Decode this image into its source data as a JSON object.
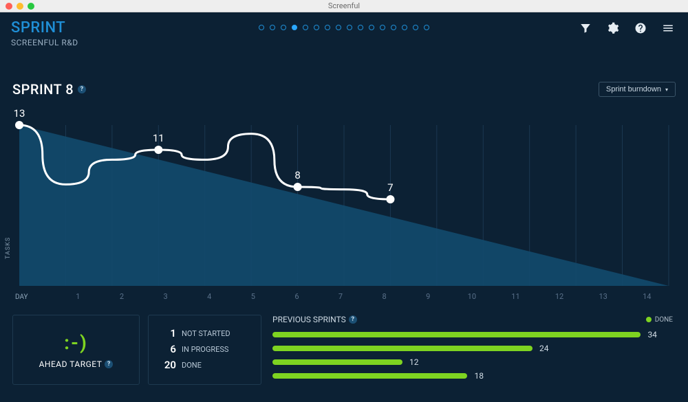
{
  "window": {
    "title": "Screenful"
  },
  "brand": {
    "title": "SPRINT",
    "subtitle": "SCREENFUL R&D",
    "title_color": "#1f8fd6"
  },
  "pager": {
    "total": 16,
    "active_index": 3
  },
  "dropdown": {
    "label": "Sprint burndown"
  },
  "sprint": {
    "title": "SPRINT 8",
    "chart_type": "line+area",
    "x_label": "DAY",
    "y_label": "TASKS",
    "x_ticks": [
      "1",
      "2",
      "3",
      "4",
      "5",
      "6",
      "7",
      "8",
      "9",
      "10",
      "11",
      "12",
      "13",
      "14"
    ],
    "x_range": [
      0,
      14
    ],
    "y_range": [
      0,
      13
    ],
    "ideal_area_color": "#124a6d",
    "line_color": "#ffffff",
    "line_width": 3,
    "marker_color": "#ffffff",
    "marker_radius": 6,
    "gridline_color": "#1b3852",
    "background_color": "#0c2134",
    "ideal_points": [
      [
        0,
        13
      ],
      [
        14,
        0
      ]
    ],
    "actual_points": [
      [
        0,
        13
      ],
      [
        1,
        8.2
      ],
      [
        2,
        10.2
      ],
      [
        3,
        11
      ],
      [
        4,
        10.2
      ],
      [
        5,
        12.3
      ],
      [
        6,
        8
      ],
      [
        7,
        7.8
      ],
      [
        8,
        7
      ]
    ],
    "labeled_markers": [
      {
        "x": 0,
        "y": 13,
        "label": "13"
      },
      {
        "x": 3,
        "y": 11,
        "label": "11"
      },
      {
        "x": 6,
        "y": 8,
        "label": "8"
      },
      {
        "x": 8,
        "y": 7,
        "label": "7"
      }
    ]
  },
  "status": {
    "emoji": ":-)",
    "label": "AHEAD TARGET",
    "emoji_color": "#7ed321"
  },
  "counts": [
    {
      "value": "1",
      "label": "NOT STARTED"
    },
    {
      "value": "6",
      "label": "IN PROGRESS"
    },
    {
      "value": "20",
      "label": "DONE"
    }
  ],
  "previous": {
    "title": "PREVIOUS SPRINTS",
    "legend": "DONE",
    "bar_color": "#7ed321",
    "max": 34,
    "bars": [
      {
        "value": 34
      },
      {
        "value": 24
      },
      {
        "value": 12
      },
      {
        "value": 18
      }
    ]
  }
}
